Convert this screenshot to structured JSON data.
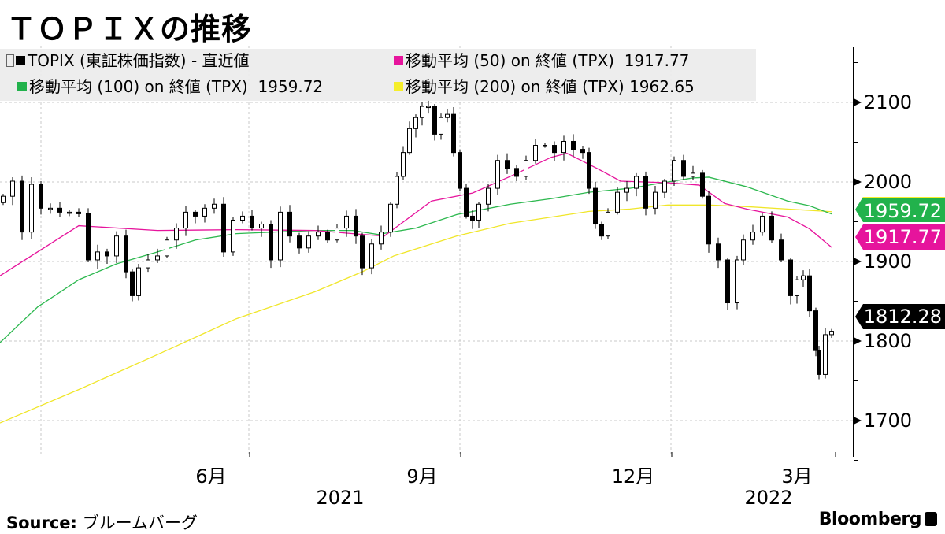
{
  "title": "ＴＯＰＩＸの推移",
  "chart_data": {
    "type": "candlestick",
    "title": "ＴＯＰＩＸの推移",
    "x_unit": "trading-day index",
    "x_range": [
      0,
      270
    ],
    "ylim": [
      1650,
      2160
    ],
    "y_ticks": [
      1700,
      1800,
      1900,
      2000,
      2100
    ],
    "x_ticks": [
      {
        "day": 79,
        "label": "6月"
      },
      {
        "day": 146,
        "label": "9月"
      },
      {
        "day": 213,
        "label": "12月"
      },
      {
        "day": 265,
        "label": "3月"
      }
    ],
    "x_gridlines": [
      13,
      79,
      146,
      213
    ],
    "year_labels": [
      {
        "day": 108,
        "label": "2021"
      },
      {
        "day": 244,
        "label": "2022"
      }
    ],
    "legend": {
      "placement": "top-left",
      "items": [
        {
          "label": "TOPIX (東証株価指数) - 直近値",
          "value": "",
          "color": "#000000"
        },
        {
          "label": "移動平均 (50) on 終値 (TPX)",
          "value": "1917.77",
          "color": "#e6149c"
        },
        {
          "label": "移動平均 (100) on 終値 (TPX)",
          "value": "1959.72",
          "color": "#22b24c"
        },
        {
          "label": "移動平均 (200) on 終値 (TPX)",
          "value": "1962.65",
          "color": "#f5ee2a"
        }
      ]
    },
    "candles_close": [
      [
        1,
        1982
      ],
      [
        4,
        2001
      ],
      [
        7,
        1937
      ],
      [
        10,
        1997
      ],
      [
        13,
        1967
      ],
      [
        16,
        1967
      ],
      [
        19,
        1962
      ],
      [
        22,
        1962
      ],
      [
        25,
        1960
      ],
      [
        28,
        1902
      ],
      [
        31,
        1912
      ],
      [
        34,
        1907
      ],
      [
        37,
        1932
      ],
      [
        40,
        1887
      ],
      [
        42,
        1857
      ],
      [
        44,
        1892
      ],
      [
        47,
        1902
      ],
      [
        50,
        1907
      ],
      [
        53,
        1927
      ],
      [
        56,
        1942
      ],
      [
        59,
        1962
      ],
      [
        62,
        1957
      ],
      [
        65,
        1967
      ],
      [
        68,
        1972
      ],
      [
        71,
        1912
      ],
      [
        74,
        1952
      ],
      [
        77,
        1957
      ],
      [
        80,
        1942
      ],
      [
        83,
        1947
      ],
      [
        86,
        1902
      ],
      [
        89,
        1962
      ],
      [
        92,
        1932
      ],
      [
        95,
        1917
      ],
      [
        98,
        1932
      ],
      [
        101,
        1937
      ],
      [
        104,
        1927
      ],
      [
        107,
        1942
      ],
      [
        110,
        1957
      ],
      [
        113,
        1932
      ],
      [
        115,
        1892
      ],
      [
        118,
        1922
      ],
      [
        121,
        1937
      ],
      [
        124,
        1972
      ],
      [
        126,
        2007
      ],
      [
        128,
        2037
      ],
      [
        130,
        2067
      ],
      [
        132,
        2081
      ],
      [
        134,
        2095
      ],
      [
        136,
        2095
      ],
      [
        138,
        2060
      ],
      [
        140,
        2081
      ],
      [
        142,
        2085
      ],
      [
        144,
        2037
      ],
      [
        146,
        1992
      ],
      [
        148,
        1957
      ],
      [
        150,
        1952
      ],
      [
        152,
        1972
      ],
      [
        155,
        1992
      ],
      [
        158,
        2027
      ],
      [
        161,
        2017
      ],
      [
        164,
        2007
      ],
      [
        167,
        2027
      ],
      [
        170,
        2046
      ],
      [
        173,
        2046
      ],
      [
        176,
        2037
      ],
      [
        179,
        2051
      ],
      [
        182,
        2041
      ],
      [
        185,
        2037
      ],
      [
        187,
        1992
      ],
      [
        189,
        1947
      ],
      [
        191,
        1932
      ],
      [
        193,
        1962
      ],
      [
        196,
        1987
      ],
      [
        199,
        1992
      ],
      [
        202,
        2007
      ],
      [
        205,
        1967
      ],
      [
        208,
        1987
      ],
      [
        211,
        2001
      ],
      [
        214,
        2027
      ],
      [
        217,
        2007
      ],
      [
        220,
        2011
      ],
      [
        223,
        1982
      ],
      [
        225,
        1922
      ],
      [
        228,
        1902
      ],
      [
        231,
        1848
      ],
      [
        234,
        1902
      ],
      [
        236,
        1927
      ],
      [
        239,
        1937
      ],
      [
        242,
        1957
      ],
      [
        245,
        1927
      ],
      [
        248,
        1902
      ],
      [
        251,
        1857
      ],
      [
        253,
        1877
      ],
      [
        255,
        1882
      ],
      [
        257,
        1838
      ],
      [
        259,
        1788
      ],
      [
        260,
        1758
      ],
      [
        262,
        1808
      ],
      [
        264,
        1812.28
      ]
    ],
    "ma50": [
      [
        0,
        1882
      ],
      [
        25,
        1945
      ],
      [
        50,
        1939
      ],
      [
        75,
        1940
      ],
      [
        100,
        1939
      ],
      [
        115,
        1934
      ],
      [
        122,
        1932
      ],
      [
        137,
        1976
      ],
      [
        150,
        1986
      ],
      [
        162,
        2007
      ],
      [
        175,
        2031
      ],
      [
        180,
        2036
      ],
      [
        190,
        2016
      ],
      [
        197,
        2001
      ],
      [
        212,
        1999
      ],
      [
        222,
        1996
      ],
      [
        230,
        1973
      ],
      [
        237,
        1966
      ],
      [
        250,
        1956
      ],
      [
        257,
        1941
      ],
      [
        264,
        1917.77
      ]
    ],
    "ma100": [
      [
        0,
        1798
      ],
      [
        12,
        1843
      ],
      [
        25,
        1877
      ],
      [
        37,
        1897
      ],
      [
        50,
        1912
      ],
      [
        62,
        1927
      ],
      [
        75,
        1935
      ],
      [
        87,
        1937
      ],
      [
        100,
        1939
      ],
      [
        112,
        1939
      ],
      [
        120,
        1934
      ],
      [
        132,
        1942
      ],
      [
        145,
        1959
      ],
      [
        162,
        1972
      ],
      [
        175,
        1979
      ],
      [
        187,
        1987
      ],
      [
        200,
        1992
      ],
      [
        212,
        2000
      ],
      [
        220,
        2005
      ],
      [
        225,
        2006
      ],
      [
        237,
        1994
      ],
      [
        250,
        1976
      ],
      [
        257,
        1970
      ],
      [
        264,
        1959.72
      ]
    ],
    "ma200": [
      [
        0,
        1697
      ],
      [
        25,
        1739
      ],
      [
        50,
        1783
      ],
      [
        75,
        1828
      ],
      [
        100,
        1862
      ],
      [
        115,
        1887
      ],
      [
        125,
        1907
      ],
      [
        145,
        1932
      ],
      [
        162,
        1948
      ],
      [
        187,
        1963
      ],
      [
        200,
        1966
      ],
      [
        212,
        1971
      ],
      [
        225,
        1971
      ],
      [
        237,
        1969
      ],
      [
        250,
        1966
      ],
      [
        264,
        1962.65
      ]
    ],
    "last_value_tags": [
      {
        "value": "1959.72",
        "color": "#22b24c"
      },
      {
        "value": "1917.77",
        "color": "#e6149c"
      },
      {
        "value": "1812.28",
        "color": "#000000"
      }
    ]
  },
  "footer": {
    "source_label": "Source:",
    "source_value": "ブルームバーグ",
    "brand": "Bloomberg"
  }
}
